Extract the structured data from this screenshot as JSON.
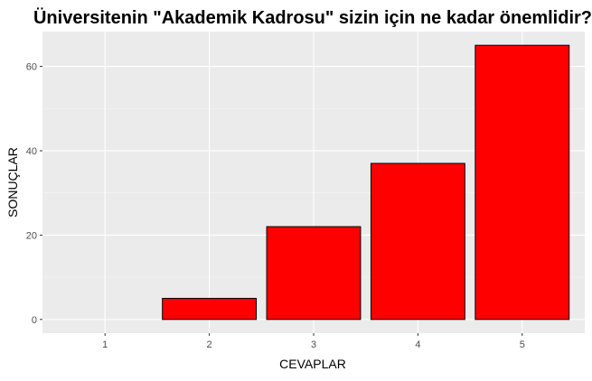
{
  "chart_data": {
    "type": "bar",
    "title": "Üniversitenin \"Akademik Kadrosu\" sizin için ne kadar önemlidir?",
    "xlabel": "CEVAPLAR",
    "ylabel": "SONUÇLAR",
    "categories": [
      "1",
      "2",
      "3",
      "4",
      "5"
    ],
    "values": [
      0,
      5,
      22,
      37,
      65
    ],
    "ylim": [
      -3.25,
      68.25
    ],
    "yticks": [
      0,
      20,
      40,
      60
    ],
    "grid": true,
    "legend": "none",
    "colors": {
      "bar_fill": "#ff0000",
      "bar_stroke": "#000000",
      "panel_background": "#ebebeb",
      "grid_major": "#ffffff",
      "grid_minor": "#f5f5f5",
      "tick_label": "#4d4d4d"
    }
  }
}
